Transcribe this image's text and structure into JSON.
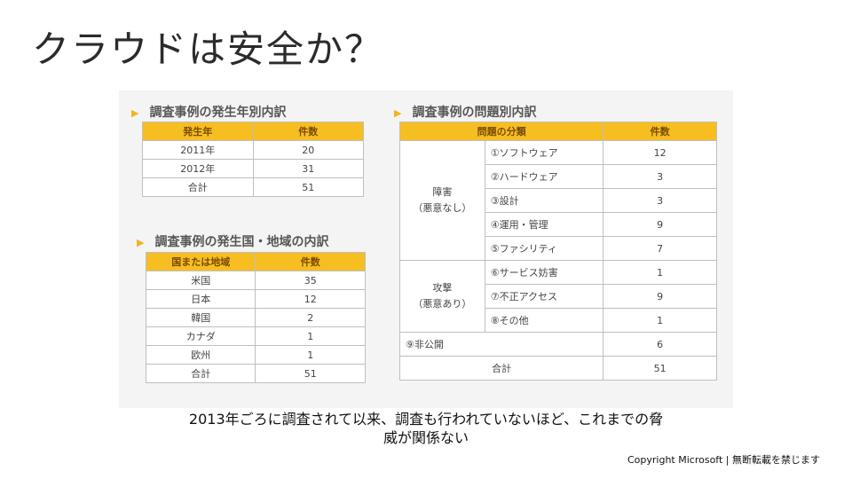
{
  "slide": {
    "title": "クラウドは安全か？"
  },
  "year_table": {
    "title": "調査事例の発生年別内訳",
    "headers": [
      "発生年",
      "件数"
    ],
    "rows": [
      [
        "2011年",
        "20"
      ],
      [
        "2012年",
        "31"
      ],
      [
        "合計",
        "51"
      ]
    ]
  },
  "country_table": {
    "title": "調査事例の発生国・地域の内訳",
    "headers": [
      "国または地域",
      "件数"
    ],
    "rows": [
      [
        "米国",
        "35"
      ],
      [
        "日本",
        "12"
      ],
      [
        "韓国",
        "2"
      ],
      [
        "カナダ",
        "1"
      ],
      [
        "欧州",
        "1"
      ],
      [
        "合計",
        "51"
      ]
    ]
  },
  "problem_table": {
    "title": "調査事例の問題別内訳",
    "headers": [
      "問題の分類",
      "件数"
    ],
    "group1": {
      "label_line1": "障害",
      "label_line2": "（悪意なし）"
    },
    "group2": {
      "label_line1": "攻撃",
      "label_line2": "（悪意あり）"
    },
    "rows": [
      [
        "①ソフトウェア",
        "12"
      ],
      [
        "②ハードウェア",
        "3"
      ],
      [
        "③設計",
        "3"
      ],
      [
        "④運用・管理",
        "9"
      ],
      [
        "⑤ファシリティ",
        "7"
      ],
      [
        "⑥サービス妨害",
        "1"
      ],
      [
        "⑦不正アクセス",
        "9"
      ],
      [
        "⑧その他",
        "1"
      ]
    ],
    "undisclosed": [
      "⑨非公開",
      "6"
    ],
    "total": [
      "合計",
      "51"
    ]
  },
  "caption": {
    "line1": "2013年ごろに調査されて以来、調査も行われていないほど、これまでの脅",
    "line2": "威が関係ない"
  },
  "footer": {
    "copyright": "Copyright Microsoft | 無断転載を禁じます"
  },
  "colors": {
    "header_bg": "#f7be22",
    "arrow": "#f2b31c"
  }
}
